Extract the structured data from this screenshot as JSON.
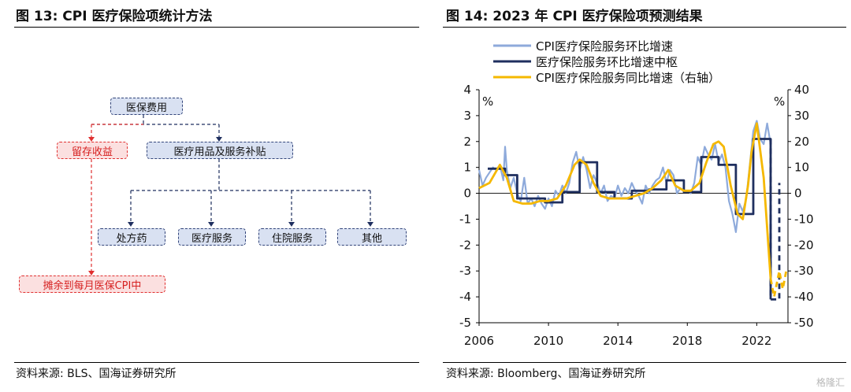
{
  "left": {
    "title": "图 13:  CPI 医疗保险项统计方法",
    "source": "资料来源: BLS、国海证券研究所",
    "nodes": {
      "root": "医保费用",
      "retained": "留存收益",
      "services": "医疗用品及服务补贴",
      "prescription": "处方药",
      "medical_services": "医疗服务",
      "hospital_services": "住院服务",
      "other": "其他",
      "spread": "摊余到每月医保CPI中"
    }
  },
  "right": {
    "title": "图 14:  2023 年 CPI 医疗保险项预测结果",
    "source": "资料来源: Bloomberg、国海证券研究所"
  },
  "watermark": "格隆汇",
  "chart_data": {
    "type": "line",
    "legend_position": "top-left",
    "y_left_unit": "%",
    "y_right_unit": "%",
    "ylim_left": [
      -5,
      4
    ],
    "ylim_right": [
      -50,
      40
    ],
    "y_left_ticks": [
      "4",
      "3",
      "2",
      "1",
      "0",
      "-1",
      "-2",
      "-3",
      "-4",
      "-5"
    ],
    "y_right_ticks": [
      "40",
      "30",
      "20",
      "10",
      "0",
      "-10",
      "-20",
      "-30",
      "-40",
      "-50"
    ],
    "x_ticks": [
      "2006",
      "2010",
      "2014",
      "2018",
      "2022"
    ],
    "xlim": [
      2006,
      2023.8
    ],
    "series": [
      {
        "name": "CPI医疗保险服务环比增速",
        "axis": "left",
        "color": "#8eaadb",
        "x": [
          2006.0,
          2006.2,
          2006.4,
          2006.6,
          2006.8,
          2007.0,
          2007.2,
          2007.4,
          2007.5,
          2007.6,
          2007.8,
          2008.0,
          2008.2,
          2008.4,
          2008.6,
          2008.8,
          2009.0,
          2009.2,
          2009.4,
          2009.6,
          2009.8,
          2010.0,
          2010.2,
          2010.4,
          2010.6,
          2010.8,
          2011.0,
          2011.2,
          2011.4,
          2011.6,
          2011.8,
          2012.0,
          2012.2,
          2012.4,
          2012.6,
          2012.8,
          2013.0,
          2013.2,
          2013.4,
          2013.6,
          2013.8,
          2014.0,
          2014.2,
          2014.4,
          2014.6,
          2014.8,
          2015.0,
          2015.2,
          2015.4,
          2015.6,
          2015.8,
          2016.0,
          2016.2,
          2016.4,
          2016.6,
          2016.8,
          2017.0,
          2017.2,
          2017.4,
          2017.6,
          2017.8,
          2018.0,
          2018.2,
          2018.4,
          2018.6,
          2018.8,
          2019.0,
          2019.2,
          2019.4,
          2019.6,
          2019.8,
          2020.0,
          2020.2,
          2020.4,
          2020.6,
          2020.8,
          2021.0,
          2021.2,
          2021.4,
          2021.6,
          2021.8,
          2022.0,
          2022.2,
          2022.4,
          2022.6,
          2022.8
        ],
        "values": [
          0.9,
          0.3,
          0.6,
          0.8,
          1.0,
          0.9,
          1.1,
          0.5,
          1.8,
          0.9,
          0.2,
          0.6,
          0.0,
          -0.3,
          0.6,
          -0.4,
          -0.2,
          -0.5,
          -0.1,
          -0.4,
          -0.6,
          -0.2,
          -0.5,
          0.1,
          -0.1,
          0.3,
          0.0,
          0.4,
          1.2,
          1.6,
          0.9,
          1.4,
          0.9,
          0.2,
          0.7,
          0.4,
          0.0,
          0.3,
          -0.3,
          -0.1,
          -0.2,
          0.3,
          -0.1,
          0.2,
          0.0,
          0.4,
          0.1,
          -0.1,
          -0.4,
          0.3,
          0.0,
          0.3,
          0.5,
          0.6,
          1.0,
          0.4,
          0.9,
          0.7,
          0.0,
          0.2,
          0.1,
          0.1,
          0.0,
          0.4,
          1.4,
          1.1,
          1.8,
          1.5,
          1.3,
          1.9,
          1.2,
          1.5,
          1.0,
          -0.3,
          -0.8,
          -1.5,
          -0.4,
          -0.7,
          -0.2,
          1.1,
          2.4,
          2.8,
          2.1,
          1.9,
          2.7,
          1.9
        ]
      },
      {
        "name": "医疗保险服务环比增速中枢",
        "axis": "left",
        "color": "#1f2f5f",
        "x": [
          2006.5,
          2007.5,
          2007.5,
          2008.2,
          2008.2,
          2009.8,
          2009.8,
          2010.8,
          2010.8,
          2011.8,
          2011.8,
          2012.8,
          2012.8,
          2013.8,
          2013.8,
          2014.8,
          2014.8,
          2015.8,
          2015.8,
          2016.8,
          2016.8,
          2017.8,
          2017.8,
          2018.8,
          2018.8,
          2019.8,
          2019.8,
          2020.8,
          2020.8,
          2021.8,
          2021.8,
          2022.8,
          2022.8,
          2023.3,
          2023.3
        ],
        "values": [
          0.95,
          0.95,
          0.7,
          0.7,
          -0.2,
          -0.2,
          -0.35,
          -0.35,
          0.05,
          0.05,
          1.2,
          1.2,
          0.05,
          0.05,
          -0.2,
          -0.2,
          0.1,
          0.1,
          0.15,
          0.15,
          0.5,
          0.5,
          0.05,
          0.05,
          1.4,
          1.4,
          1.1,
          1.1,
          -0.8,
          -0.8,
          2.1,
          2.1,
          -4.1,
          -4.1,
          0.4
        ],
        "dashed_from_x": 2022.8
      },
      {
        "name": "CPI医疗保险服务同比增速（右轴）",
        "axis": "right",
        "color": "#f5b800",
        "x": [
          2006.0,
          2006.6,
          2007.2,
          2007.6,
          2008.0,
          2008.5,
          2009.0,
          2009.5,
          2010.0,
          2010.5,
          2011.0,
          2011.5,
          2011.8,
          2012.2,
          2012.6,
          2013.0,
          2013.5,
          2014.0,
          2014.5,
          2015.0,
          2015.5,
          2016.0,
          2016.5,
          2016.9,
          2017.3,
          2017.8,
          2018.2,
          2018.7,
          2019.1,
          2019.5,
          2019.8,
          2020.1,
          2020.5,
          2020.9,
          2021.2,
          2021.5,
          2021.7,
          2022.0,
          2022.4,
          2022.8,
          2023.0,
          2023.3,
          2023.5,
          2023.7
        ],
        "values": [
          2,
          4,
          11,
          6,
          -3,
          -4,
          -4,
          -3,
          -3,
          -2,
          3,
          11,
          13,
          11,
          4,
          -1,
          -2,
          -2,
          -2,
          -1,
          0,
          2,
          5,
          9,
          3,
          1,
          1,
          4,
          12,
          19,
          20,
          18,
          3,
          -8,
          -10,
          3,
          16,
          27,
          6,
          -33,
          -40,
          -30,
          -37,
          -30
        ],
        "dashed_from_x": 2022.8
      }
    ]
  }
}
